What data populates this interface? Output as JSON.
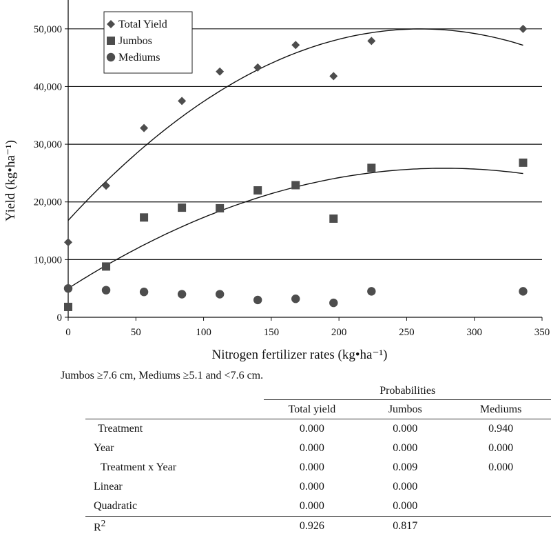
{
  "chart_data": {
    "type": "scatter",
    "xlabel": "Nitrogen fertilizer rates (kg•ha⁻¹)",
    "ylabel": "Yield (kg•ha⁻¹)",
    "xlim": [
      0,
      350
    ],
    "ylim": [
      0,
      55000
    ],
    "x_ticks": [
      "0",
      "50",
      "100",
      "150",
      "200",
      "250",
      "300",
      "350"
    ],
    "y_ticks": [
      "0",
      "10,000",
      "20,000",
      "30,000",
      "40,000",
      "50,000"
    ],
    "grid": "horizontal",
    "legend_position": "top-left",
    "series": [
      {
        "name": "Total Yield",
        "marker": "diamond",
        "color": "#4d4d4d",
        "x": [
          0,
          28,
          56,
          84,
          112,
          140,
          168,
          196,
          224,
          336
        ],
        "y": [
          13000,
          22800,
          32800,
          37500,
          42600,
          43300,
          47200,
          41800,
          47900,
          50000
        ],
        "fit": [
          16800,
          255,
          -0.49
        ]
      },
      {
        "name": "Jumbos",
        "marker": "square",
        "color": "#4d4d4d",
        "x": [
          0,
          28,
          56,
          84,
          112,
          140,
          168,
          196,
          224,
          336
        ],
        "y": [
          1800,
          8800,
          17300,
          19000,
          18900,
          22000,
          22900,
          17100,
          25900,
          26800
        ],
        "fit": [
          5000,
          150,
          -0.27
        ]
      },
      {
        "name": "Mediums",
        "marker": "circle",
        "color": "#4d4d4d",
        "x": [
          0,
          28,
          56,
          84,
          112,
          140,
          168,
          196,
          224,
          336
        ],
        "y": [
          5000,
          4700,
          4400,
          4000,
          4000,
          3000,
          3200,
          2500,
          4500,
          4500
        ]
      }
    ]
  },
  "note": "Jumbos ≥7.6 cm, Mediums ≥5.1 and <7.6 cm.",
  "table": {
    "group_header": "Probabilities",
    "columns": [
      "Total yield",
      "Jumbos",
      "Mediums"
    ],
    "rows": [
      {
        "label": "Treatment",
        "values": [
          "0.000",
          "0.000",
          "0.940"
        ]
      },
      {
        "label": "Year",
        "values": [
          "0.000",
          "0.000",
          "0.000"
        ]
      },
      {
        "label": "Treatment x Year",
        "values": [
          "0.000",
          "0.009",
          "0.000"
        ]
      },
      {
        "label": "Linear",
        "values": [
          "0.000",
          "0.000",
          ""
        ]
      },
      {
        "label": "Quadratic",
        "values": [
          "0.000",
          "0.000",
          ""
        ]
      }
    ],
    "r2_label_base": "R",
    "r2_label_sup": "2",
    "r2_values": [
      "0.926",
      "0.817",
      ""
    ]
  }
}
